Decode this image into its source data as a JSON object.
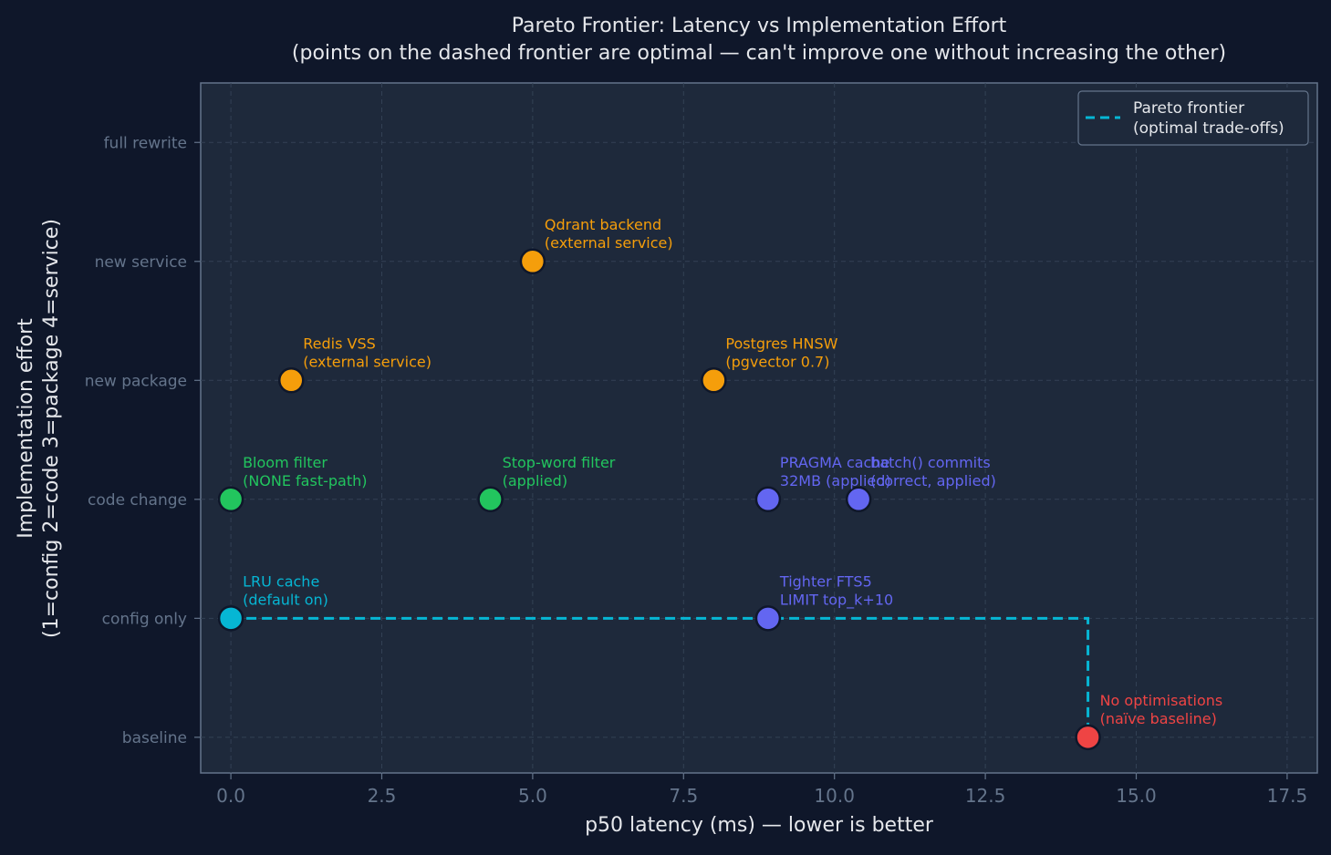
{
  "chart_data": {
    "type": "scatter",
    "title": "Pareto Frontier: Latency vs Implementation Effort",
    "subtitle": "(points on the dashed frontier are optimal — can't improve one without increasing the other)",
    "xlabel": "p50 latency (ms) — lower is better",
    "ylabel_line1": "Implementation effort",
    "ylabel_line2": "(1=config  2=code  3=package  4=service)",
    "xlim": [
      -0.5,
      18.0
    ],
    "ylim": [
      -0.3,
      5.5
    ],
    "x_ticks": [
      {
        "value": 0.0,
        "label": "0.0"
      },
      {
        "value": 2.5,
        "label": "2.5"
      },
      {
        "value": 5.0,
        "label": "5.0"
      },
      {
        "value": 7.5,
        "label": "7.5"
      },
      {
        "value": 10.0,
        "label": "10.0"
      },
      {
        "value": 12.5,
        "label": "12.5"
      },
      {
        "value": 15.0,
        "label": "15.0"
      },
      {
        "value": 17.5,
        "label": "17.5"
      }
    ],
    "y_ticks": [
      {
        "value": 0,
        "label": "baseline"
      },
      {
        "value": 1,
        "label": "config only"
      },
      {
        "value": 2,
        "label": "code change"
      },
      {
        "value": 3,
        "label": "new package"
      },
      {
        "value": 4,
        "label": "new service"
      },
      {
        "value": 5,
        "label": "full rewrite"
      }
    ],
    "grid": true,
    "legend": {
      "position": "top-right",
      "entries": [
        {
          "line1": "Pareto frontier",
          "line2": "(optimal trade-offs)",
          "color": "#06b6d4",
          "style": "dashed"
        }
      ]
    },
    "points": [
      {
        "x": 14.2,
        "y": 0,
        "label1": "No optimisations",
        "label2": "(naïve baseline)",
        "color": "#ef4444"
      },
      {
        "x": 0.0,
        "y": 1,
        "label1": "LRU cache",
        "label2": "(default on)",
        "color": "#06b6d4"
      },
      {
        "x": 8.9,
        "y": 1,
        "label1": "Tighter FTS5",
        "label2": "LIMIT top_k+10",
        "color": "#6366f1"
      },
      {
        "x": 0.0,
        "y": 2,
        "label1": "Bloom filter",
        "label2": "(NONE fast-path)",
        "color": "#22c55e"
      },
      {
        "x": 4.3,
        "y": 2,
        "label1": "Stop-word filter",
        "label2": "(applied)",
        "color": "#22c55e"
      },
      {
        "x": 8.9,
        "y": 2,
        "label1": "PRAGMA cache",
        "label2": "32MB (applied)",
        "color": "#6366f1"
      },
      {
        "x": 10.4,
        "y": 2,
        "label1": "batch() commits",
        "label2": "(correct, applied)",
        "color": "#6366f1"
      },
      {
        "x": 1.0,
        "y": 3,
        "label1": "Redis VSS",
        "label2": "(external service)",
        "color": "#f59e0b"
      },
      {
        "x": 8.0,
        "y": 3,
        "label1": "Postgres HNSW",
        "label2": "(pgvector 0.7)",
        "color": "#f59e0b"
      },
      {
        "x": 5.0,
        "y": 4,
        "label1": "Qdrant backend",
        "label2": "(external service)",
        "color": "#f59e0b"
      }
    ],
    "frontier": {
      "color": "#06b6d4",
      "points": [
        [
          0.0,
          1
        ],
        [
          14.2,
          1
        ],
        [
          14.2,
          0
        ]
      ]
    }
  }
}
